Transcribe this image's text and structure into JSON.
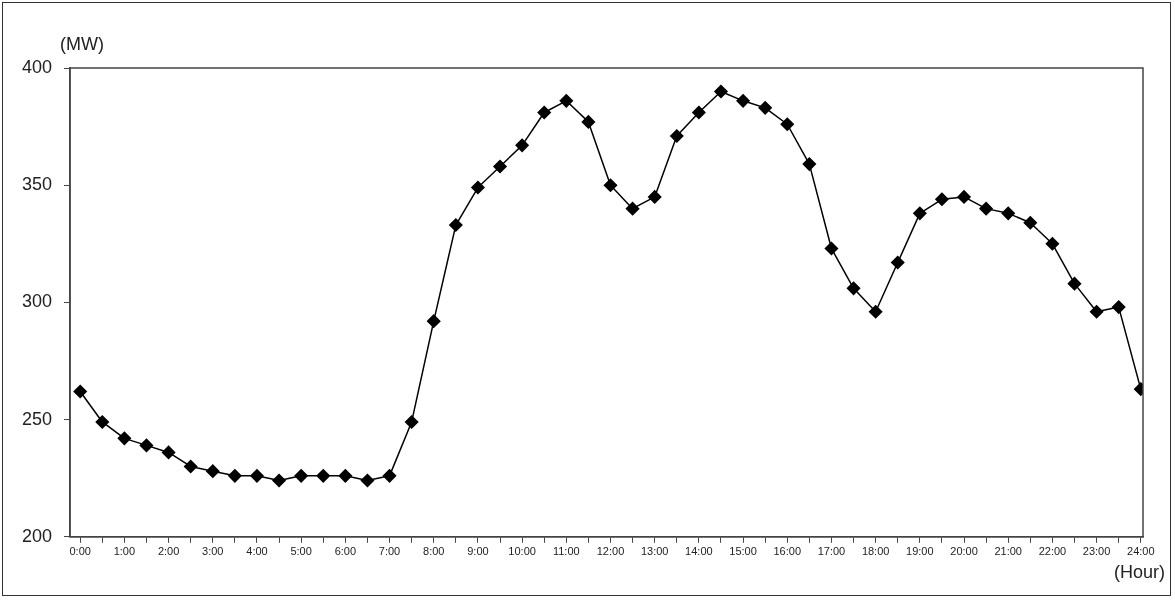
{
  "chart_data": {
    "type": "line",
    "ylabel": "(MW)",
    "xlabel": "(Hour)",
    "x": [
      0,
      0.5,
      1,
      1.5,
      2,
      2.5,
      3,
      3.5,
      4,
      4.5,
      5,
      5.5,
      6,
      6.5,
      7,
      7.5,
      8,
      8.5,
      9,
      9.5,
      10,
      10.5,
      11,
      11.5,
      12,
      12.5,
      13,
      13.5,
      14,
      14.5,
      15,
      15.5,
      16,
      16.5,
      17,
      17.5,
      18,
      18.5,
      19,
      19.5,
      20,
      20.5,
      21,
      21.5,
      22,
      22.5,
      23,
      23.5,
      24
    ],
    "series": [
      {
        "color": "#000000",
        "values": [
          262,
          249,
          242,
          239,
          236,
          230,
          228,
          226,
          226,
          224,
          226,
          226,
          226,
          224,
          226,
          249,
          292,
          333,
          349,
          358,
          367,
          381,
          386,
          377,
          350,
          340,
          345,
          371,
          381,
          390,
          386,
          383,
          376,
          359,
          323,
          306,
          296,
          317,
          338,
          344,
          345,
          340,
          338,
          334,
          325,
          308,
          296,
          298,
          263
        ]
      }
    ],
    "xlim": [
      -0.23,
      24.05
    ],
    "xticks": [
      {
        "value": 0,
        "label": "0:00"
      },
      {
        "value": 0.5,
        "label": null
      },
      {
        "value": 1,
        "label": "1:00"
      },
      {
        "value": 1.5,
        "label": null
      },
      {
        "value": 2,
        "label": "2:00"
      },
      {
        "value": 2.5,
        "label": null
      },
      {
        "value": 3,
        "label": "3:00"
      },
      {
        "value": 3.5,
        "label": null
      },
      {
        "value": 4,
        "label": "4:00"
      },
      {
        "value": 4.5,
        "label": null
      },
      {
        "value": 5,
        "label": "5:00"
      },
      {
        "value": 5.5,
        "label": null
      },
      {
        "value": 6,
        "label": "6:00"
      },
      {
        "value": 6.5,
        "label": null
      },
      {
        "value": 7,
        "label": "7:00"
      },
      {
        "value": 7.5,
        "label": null
      },
      {
        "value": 8,
        "label": "8:00"
      },
      {
        "value": 8.5,
        "label": null
      },
      {
        "value": 9,
        "label": "9:00"
      },
      {
        "value": 9.5,
        "label": null
      },
      {
        "value": 10,
        "label": "10:00"
      },
      {
        "value": 10.5,
        "label": null
      },
      {
        "value": 11,
        "label": "11:00"
      },
      {
        "value": 11.5,
        "label": null
      },
      {
        "value": 12,
        "label": "12:00"
      },
      {
        "value": 12.5,
        "label": null
      },
      {
        "value": 13,
        "label": "13:00"
      },
      {
        "value": 13.5,
        "label": null
      },
      {
        "value": 14,
        "label": "14:00"
      },
      {
        "value": 14.5,
        "label": null
      },
      {
        "value": 15,
        "label": "15:00"
      },
      {
        "value": 15.5,
        "label": null
      },
      {
        "value": 16,
        "label": "16:00"
      },
      {
        "value": 16.5,
        "label": null
      },
      {
        "value": 17,
        "label": "17:00"
      },
      {
        "value": 17.5,
        "label": null
      },
      {
        "value": 18,
        "label": "18:00"
      },
      {
        "value": 18.5,
        "label": null
      },
      {
        "value": 19,
        "label": "19:00"
      },
      {
        "value": 19.5,
        "label": null
      },
      {
        "value": 20,
        "label": "20:00"
      },
      {
        "value": 20.5,
        "label": null
      },
      {
        "value": 21,
        "label": "21:00"
      },
      {
        "value": 21.5,
        "label": null
      },
      {
        "value": 22,
        "label": "22:00"
      },
      {
        "value": 22.5,
        "label": null
      },
      {
        "value": 23,
        "label": "23:00"
      },
      {
        "value": 23.5,
        "label": null
      },
      {
        "value": 24,
        "label": "24:00"
      }
    ],
    "ylim": [
      200,
      400
    ],
    "yticks": [
      200,
      250,
      300,
      350,
      400
    ],
    "grid": false,
    "legend": false,
    "marker": "diamond",
    "line_style": "solid"
  }
}
